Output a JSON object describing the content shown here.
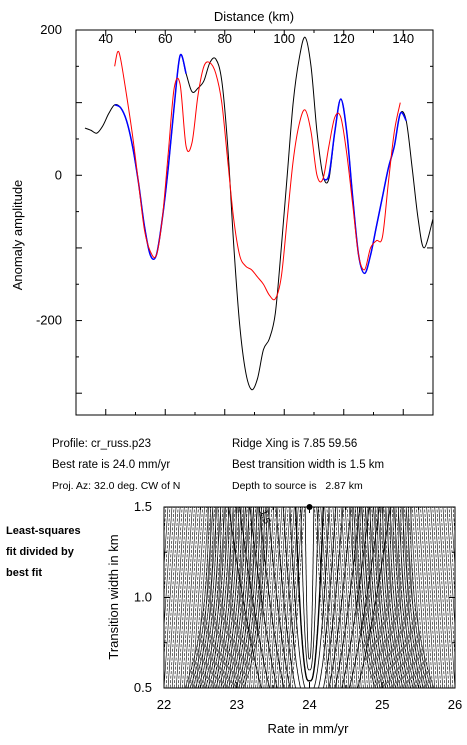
{
  "profile_info": {
    "profile": "Profile: cr_russ.p23",
    "best_rate": "Best rate is 24.0 mm/yr",
    "proj_az": "Proj. Az: 32.0 deg. CW of N",
    "ridge_xing": "Ridge Xing is 7.85 59.56",
    "best_transition": "Best transition width is 1.5 km",
    "depth": "Depth to source is   2.87 km"
  },
  "side_note": [
    "Least-squares",
    "fit divided by",
    "best fit"
  ],
  "chart_data": [
    {
      "type": "line",
      "xlabel": "Distance (km)",
      "ylabel": "Anomaly amplitude",
      "xlim": [
        30,
        150
      ],
      "ylim": [
        -330,
        200
      ],
      "xticks": [
        40,
        60,
        80,
        100,
        120,
        140
      ],
      "yticks": [
        200,
        0,
        -200
      ],
      "series": [
        {
          "color": "#000000",
          "x": [
            33,
            35,
            37,
            39,
            41,
            43,
            45,
            47,
            49,
            51,
            53,
            55,
            57,
            59,
            61,
            63,
            65,
            67,
            69,
            71,
            73,
            75,
            77,
            79,
            81,
            83,
            85,
            87,
            89,
            91,
            93,
            95,
            97,
            99,
            101,
            103,
            105,
            107,
            109,
            111,
            113,
            115,
            117,
            119,
            121,
            123,
            125,
            127,
            129,
            131,
            133,
            135,
            137,
            139,
            141,
            143,
            145,
            147,
            150
          ],
          "y": [
            65,
            62,
            58,
            68,
            85,
            97,
            93,
            75,
            40,
            -10,
            -70,
            -110,
            -110,
            -60,
            10,
            95,
            165,
            140,
            115,
            120,
            130,
            155,
            160,
            130,
            40,
            -95,
            -205,
            -270,
            -295,
            -280,
            -240,
            -225,
            -190,
            -100,
            0,
            100,
            160,
            190,
            150,
            60,
            0,
            -5,
            60,
            105,
            60,
            -30,
            -110,
            -135,
            -110,
            -70,
            -30,
            10,
            40,
            85,
            75,
            10,
            -60,
            -100,
            -60
          ]
        },
        {
          "color": "#0000ff",
          "x": [
            43,
            45,
            47,
            49,
            51,
            53,
            55,
            57,
            59,
            61,
            63,
            65,
            67
          ],
          "y": [
            97,
            93,
            75,
            40,
            -10,
            -70,
            -110,
            -110,
            -60,
            10,
            95,
            165,
            140
          ]
        },
        {
          "color": "#0000ff",
          "x": [
            113,
            115,
            117,
            119,
            121,
            123,
            125,
            127,
            129,
            131,
            133,
            135,
            137,
            139,
            141
          ],
          "y": [
            -5,
            0,
            60,
            105,
            60,
            -30,
            -110,
            -135,
            -110,
            -70,
            -30,
            10,
            40,
            85,
            75
          ]
        },
        {
          "color": "#ff0000",
          "x": [
            43,
            44,
            45,
            47,
            49,
            51,
            53,
            55,
            57,
            59,
            61,
            63,
            65,
            67,
            69,
            71,
            73,
            75,
            77,
            79,
            81,
            83,
            85,
            87,
            89,
            91,
            93,
            95,
            97,
            99,
            101,
            103,
            105,
            107,
            109,
            111,
            113,
            115,
            117,
            119,
            121,
            123,
            125,
            127,
            129,
            131,
            133,
            135,
            137,
            139
          ],
          "y": [
            150,
            170,
            160,
            110,
            55,
            -10,
            -75,
            -105,
            -110,
            -60,
            30,
            120,
            125,
            40,
            45,
            110,
            150,
            155,
            140,
            100,
            20,
            -60,
            -110,
            -125,
            -130,
            -140,
            -150,
            -165,
            -170,
            -140,
            -60,
            20,
            70,
            90,
            60,
            0,
            -5,
            40,
            80,
            80,
            30,
            -40,
            -110,
            -130,
            -100,
            -90,
            -85,
            -10,
            60,
            100
          ]
        }
      ]
    },
    {
      "type": "contour",
      "xlabel": "Rate in mm/yr",
      "ylabel": "Transition width in km",
      "xlim": [
        22,
        26
      ],
      "ylim": [
        0.5,
        1.5
      ],
      "xticks": [
        22,
        23,
        24,
        25,
        26
      ],
      "yticks": [
        0.5,
        1.0,
        1.5
      ],
      "best_fit": {
        "x": 24.0,
        "y": 1.5
      },
      "contour_label": "1.5"
    }
  ]
}
